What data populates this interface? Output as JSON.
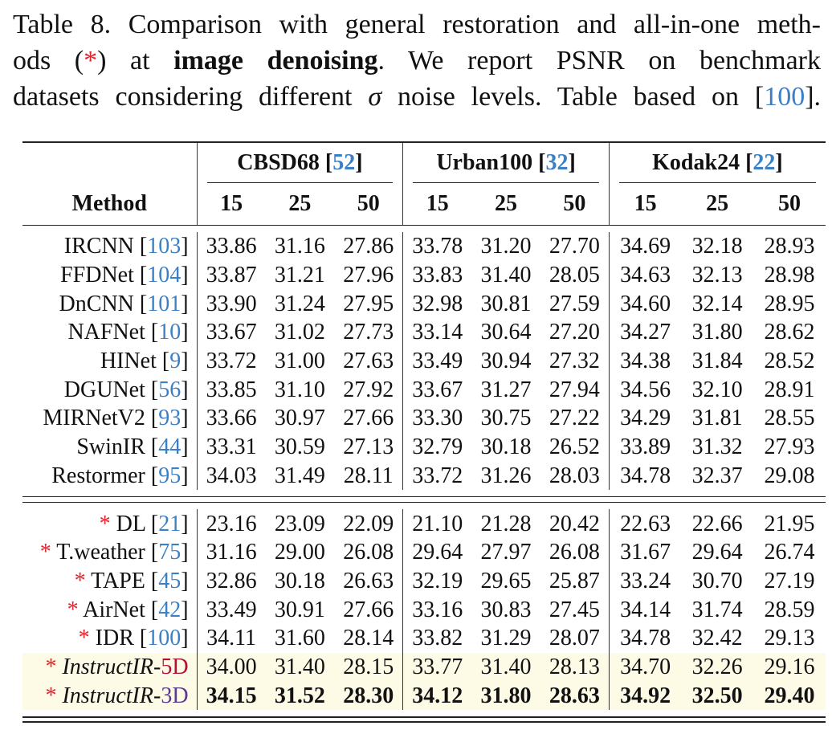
{
  "caption": {
    "line1": "Table 8. Comparison with general restoration and all-in-one meth-",
    "line2_a": "ods (",
    "line2_star": "*",
    "line2_b": ") at ",
    "line2_bold": "image denoising",
    "line2_c": ".  We report PSNR on benchmark",
    "line3_a": "datasets considering different ",
    "line3_sigma": "σ",
    "line3_b": " noise levels. Table based on [",
    "line3_ref": "100",
    "line3_c": "]."
  },
  "header": {
    "method": "Method",
    "groups": [
      {
        "name": "CBSD68",
        "ref": "52"
      },
      {
        "name": "Urban100",
        "ref": "32"
      },
      {
        "name": "Kodak24",
        "ref": "22"
      }
    ],
    "sigmas": [
      "15",
      "25",
      "50",
      "15",
      "25",
      "50",
      "15",
      "25",
      "50"
    ]
  },
  "general_methods": [
    {
      "name": "IRCNN",
      "ref": "103",
      "values": [
        "33.86",
        "31.16",
        "27.86",
        "33.78",
        "31.20",
        "27.70",
        "34.69",
        "32.18",
        "28.93"
      ]
    },
    {
      "name": "FFDNet",
      "ref": "104",
      "values": [
        "33.87",
        "31.21",
        "27.96",
        "33.83",
        "31.40",
        "28.05",
        "34.63",
        "32.13",
        "28.98"
      ]
    },
    {
      "name": "DnCNN",
      "ref": "101",
      "values": [
        "33.90",
        "31.24",
        "27.95",
        "32.98",
        "30.81",
        "27.59",
        "34.60",
        "32.14",
        "28.95"
      ]
    },
    {
      "name": "NAFNet",
      "ref": "10",
      "values": [
        "33.67",
        "31.02",
        "27.73",
        "33.14",
        "30.64",
        "27.20",
        "34.27",
        "31.80",
        "28.62"
      ]
    },
    {
      "name": "HINet",
      "ref": "9",
      "values": [
        "33.72",
        "31.00",
        "27.63",
        "33.49",
        "30.94",
        "27.32",
        "34.38",
        "31.84",
        "28.52"
      ]
    },
    {
      "name": "DGUNet",
      "ref": "56",
      "values": [
        "33.85",
        "31.10",
        "27.92",
        "33.67",
        "31.27",
        "27.94",
        "34.56",
        "32.10",
        "28.91"
      ]
    },
    {
      "name": "MIRNetV2",
      "ref": "93",
      "values": [
        "33.66",
        "30.97",
        "27.66",
        "33.30",
        "30.75",
        "27.22",
        "34.29",
        "31.81",
        "28.55"
      ]
    },
    {
      "name": "SwinIR",
      "ref": "44",
      "values": [
        "33.31",
        "30.59",
        "27.13",
        "32.79",
        "30.18",
        "26.52",
        "33.89",
        "31.32",
        "27.93"
      ]
    },
    {
      "name": "Restormer",
      "ref": "95",
      "values": [
        "34.03",
        "31.49",
        "28.11",
        "33.72",
        "31.26",
        "28.03",
        "34.78",
        "32.37",
        "29.08"
      ]
    }
  ],
  "allinone_methods": [
    {
      "star": "*",
      "name": "DL",
      "ref": "21",
      "values": [
        "23.16",
        "23.09",
        "22.09",
        "21.10",
        "21.28",
        "20.42",
        "22.63",
        "22.66",
        "21.95"
      ]
    },
    {
      "star": "*",
      "name": "T.weather",
      "ref": "75",
      "values": [
        "31.16",
        "29.00",
        "26.08",
        "29.64",
        "27.97",
        "26.08",
        "31.67",
        "29.64",
        "26.74"
      ]
    },
    {
      "star": "*",
      "name": "TAPE",
      "ref": "45",
      "values": [
        "32.86",
        "30.18",
        "26.63",
        "32.19",
        "29.65",
        "25.87",
        "33.24",
        "30.70",
        "27.19"
      ]
    },
    {
      "star": "*",
      "name": "AirNet",
      "ref": "42",
      "values": [
        "33.49",
        "30.91",
        "27.66",
        "33.16",
        "30.83",
        "27.45",
        "34.14",
        "31.74",
        "28.59"
      ]
    },
    {
      "star": "*",
      "name": "IDR",
      "ref": "100",
      "values": [
        "34.11",
        "31.60",
        "28.14",
        "33.82",
        "31.29",
        "28.07",
        "34.78",
        "32.42",
        "29.13"
      ]
    }
  ],
  "ours": [
    {
      "star": "*",
      "name": "InstructIR-",
      "suffix": "5D",
      "suffix_color": "#b0103a",
      "highlight": true,
      "bold": false,
      "values": [
        "34.00",
        "31.40",
        "28.15",
        "33.77",
        "31.40",
        "28.13",
        "34.70",
        "32.26",
        "29.16"
      ]
    },
    {
      "star": "*",
      "name": "InstructIR-",
      "suffix": "3D",
      "suffix_color": "#5b3a8f",
      "highlight": true,
      "bold": true,
      "values": [
        "34.15",
        "31.52",
        "28.30",
        "34.12",
        "31.80",
        "28.63",
        "34.92",
        "32.50",
        "29.40"
      ]
    }
  ],
  "colors": {
    "ref": "#3b7fc4",
    "star": "#e8222a",
    "highlight": "#fdfbe6"
  }
}
